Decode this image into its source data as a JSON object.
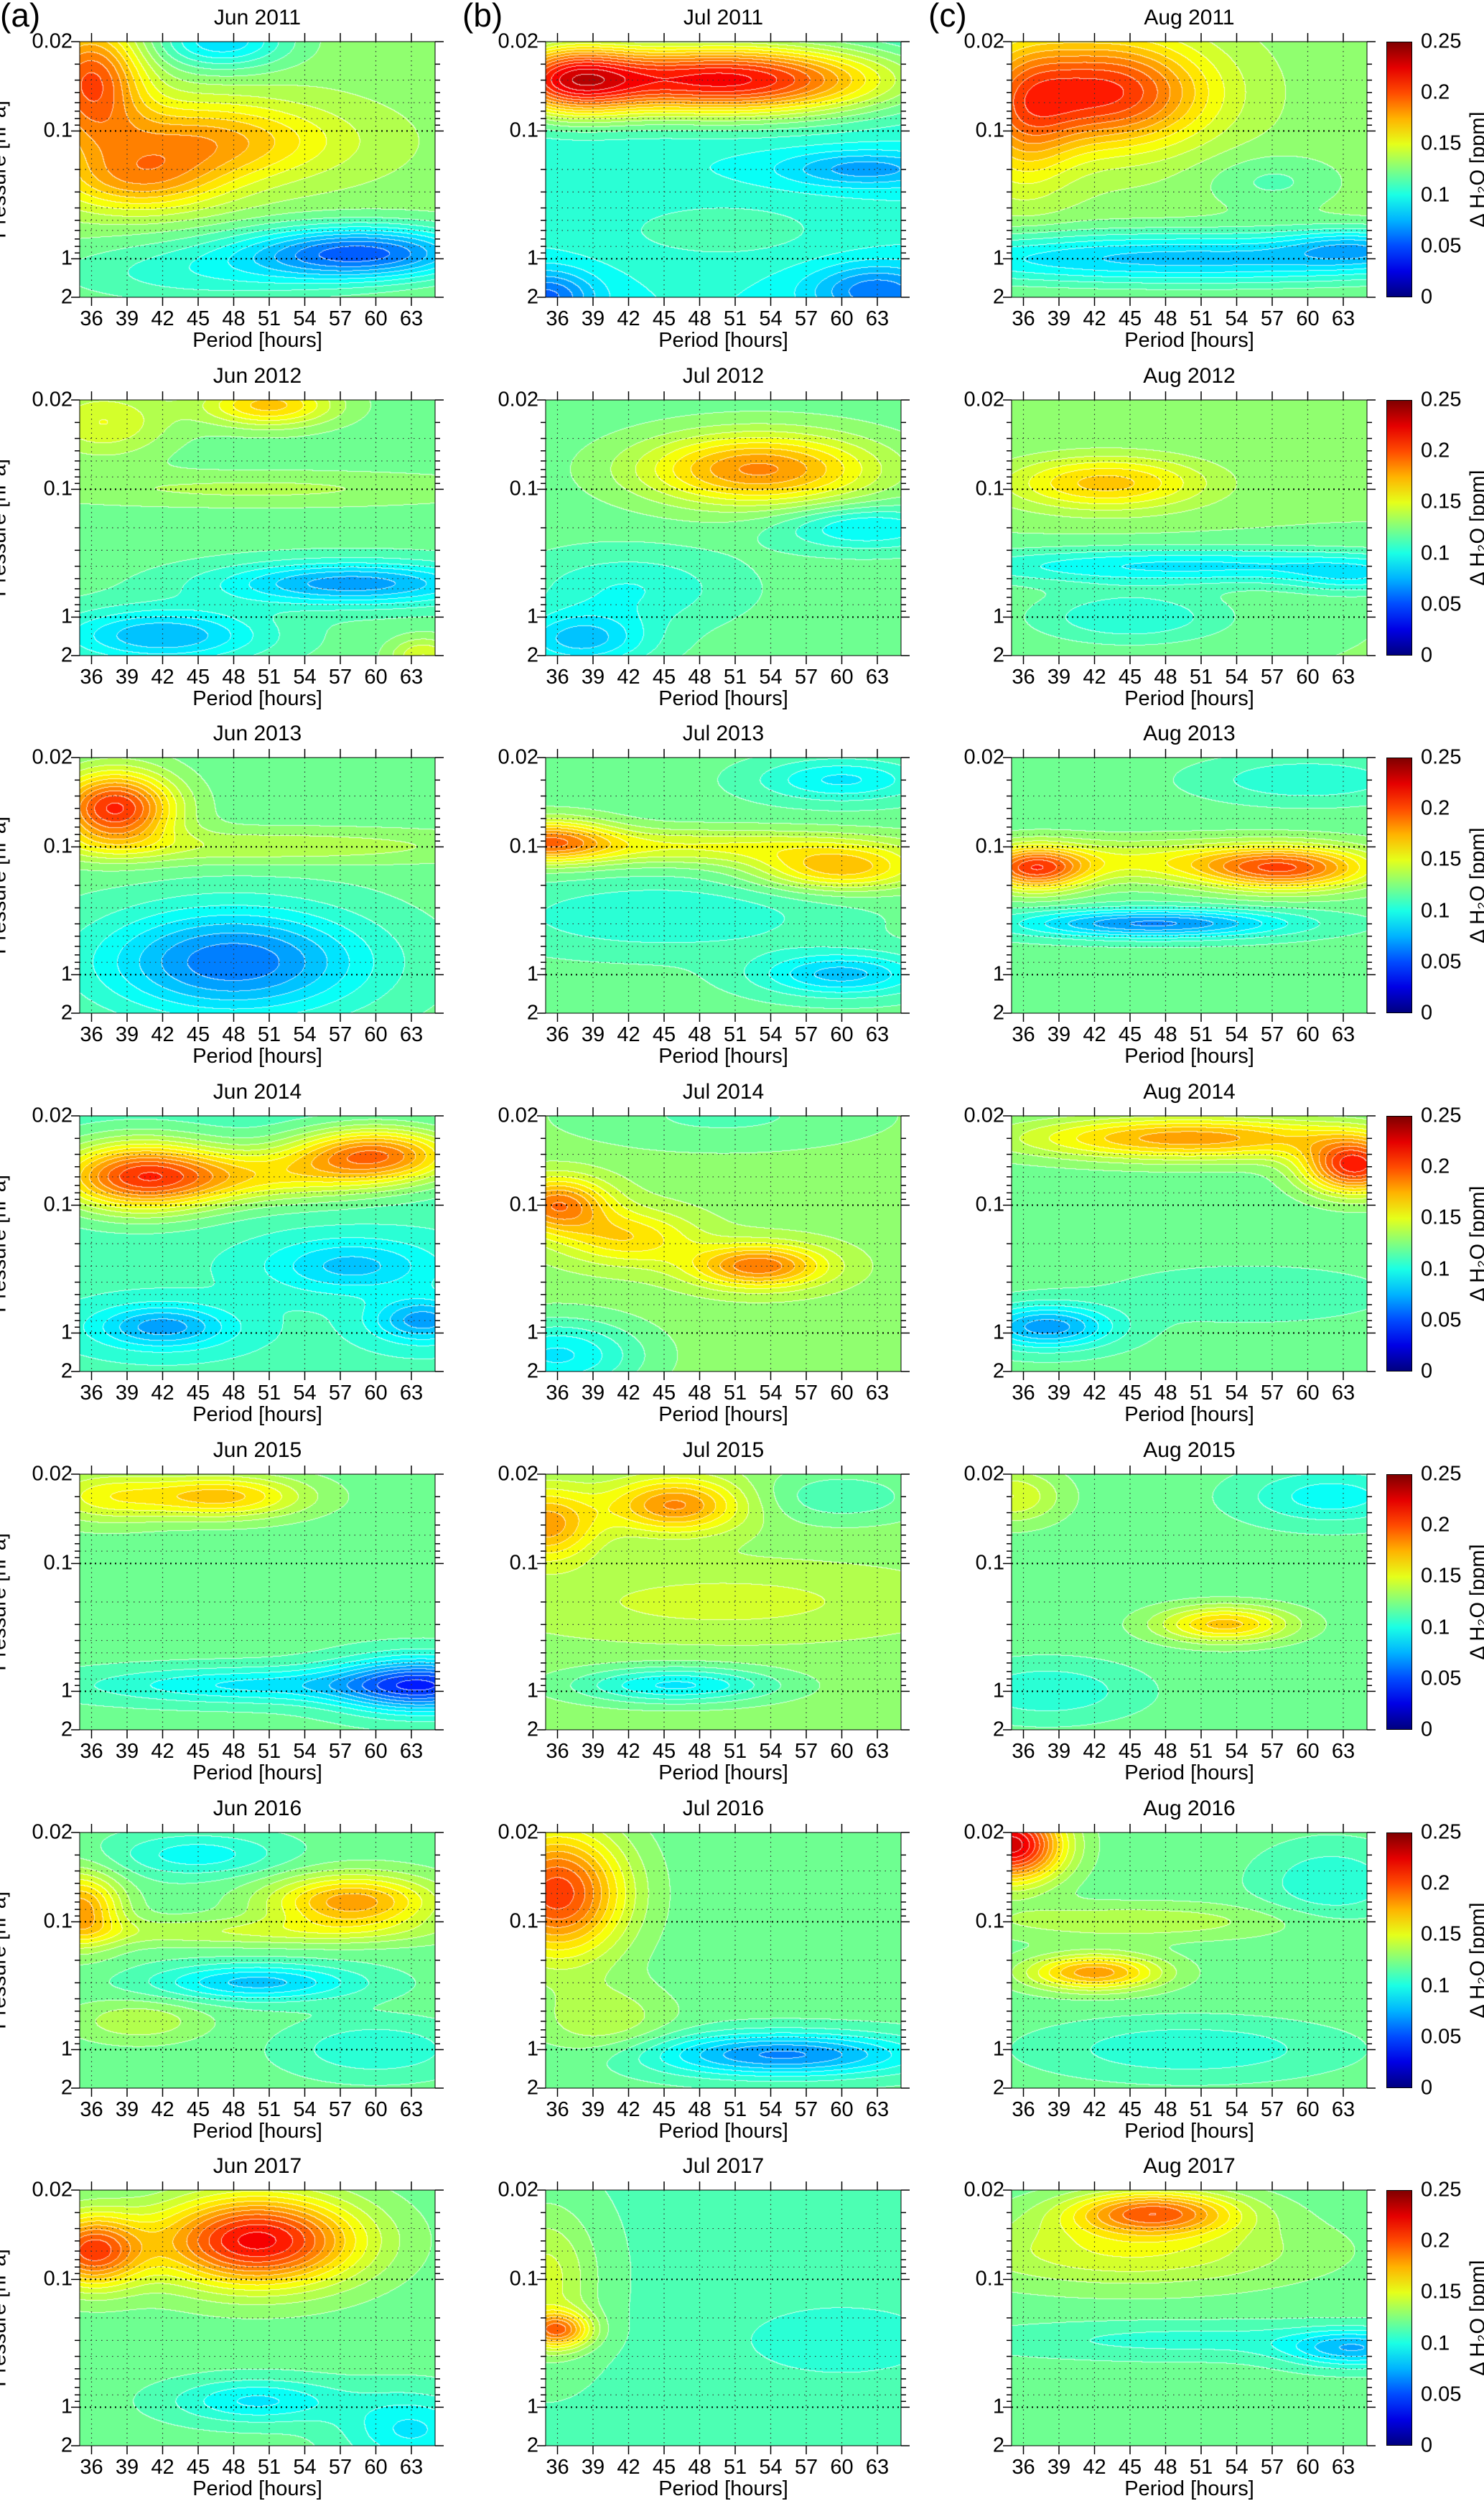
{
  "panel_labels": [
    "(a)",
    "(b)",
    "(c)"
  ],
  "axes": {
    "xlabel": "Period [hours]",
    "ylabel": "Pressure [hPa]",
    "xlim": [
      35,
      65
    ],
    "ylim": [
      0.02,
      2
    ],
    "xticks": [
      "36",
      "39",
      "42",
      "45",
      "48",
      "51",
      "54",
      "57",
      "60",
      "63"
    ],
    "yticks": [
      "0.02",
      "0.1",
      "1",
      "2"
    ],
    "yscale": "log"
  },
  "colorbar": {
    "label": "Δ H₂O [ppm]",
    "range": [
      0,
      0.25
    ],
    "ticks": [
      "0.25",
      "0.2",
      "0.15",
      "0.1",
      "0.05",
      "0"
    ],
    "colormap": "jet",
    "contour_interval": 0.00833
  },
  "chart_data": [
    {
      "type": "heatmap",
      "title": "Jun 2011",
      "base": 0.13,
      "features": [
        {
          "p": 36,
          "hPa": 0.04,
          "amp": 0.07,
          "sp": 3,
          "sl": 0.3
        },
        {
          "p": 45,
          "hPa": 0.12,
          "amp": 0.05,
          "sp": 8,
          "sl": 0.22
        },
        {
          "p": 40,
          "hPa": 0.25,
          "amp": 0.04,
          "sp": 5,
          "sl": 0.18
        },
        {
          "p": 59,
          "hPa": 0.9,
          "amp": -0.07,
          "sp": 7,
          "sl": 0.15
        },
        {
          "p": 47,
          "hPa": 0.02,
          "amp": -0.045,
          "sp": 4,
          "sl": 0.15
        },
        {
          "p": 45,
          "hPa": 1.3,
          "amp": -0.025,
          "sp": 10,
          "sl": 0.2
        }
      ]
    },
    {
      "type": "heatmap",
      "title": "Jul 2011",
      "base": 0.1,
      "features": [
        {
          "p": 50,
          "hPa": 0.04,
          "amp": 0.12,
          "sp": 10,
          "sl": 0.2
        },
        {
          "p": 37,
          "hPa": 0.04,
          "amp": 0.08,
          "sp": 4,
          "sl": 0.2
        },
        {
          "p": 35,
          "hPa": 2,
          "amp": -0.045,
          "sp": 3,
          "sl": 0.15
        },
        {
          "p": 63,
          "hPa": 1.8,
          "amp": -0.04,
          "sp": 4,
          "sl": 0.15
        },
        {
          "p": 62,
          "hPa": 0.2,
          "amp": -0.03,
          "sp": 5,
          "sl": 0.1
        },
        {
          "p": 50,
          "hPa": 0.6,
          "amp": 0.012,
          "sp": 8,
          "sl": 0.2
        }
      ]
    },
    {
      "type": "heatmap",
      "title": "Aug 2011",
      "base": 0.13,
      "features": [
        {
          "p": 43,
          "hPa": 0.05,
          "amp": 0.08,
          "sp": 6,
          "sl": 0.3
        },
        {
          "p": 36,
          "hPa": 0.08,
          "amp": 0.04,
          "sp": 3,
          "sl": 0.4
        },
        {
          "p": 50,
          "hPa": 1.0,
          "amp": -0.05,
          "sp": 20,
          "sl": 0.15
        },
        {
          "p": 64,
          "hPa": 0.8,
          "amp": -0.025,
          "sp": 4,
          "sl": 0.1
        },
        {
          "p": 57,
          "hPa": 0.25,
          "amp": -0.015,
          "sp": 4,
          "sl": 0.15
        }
      ]
    },
    {
      "type": "heatmap",
      "title": "Jun 2012",
      "base": 0.12,
      "features": [
        {
          "p": 51,
          "hPa": 0.022,
          "amp": 0.05,
          "sp": 4,
          "sl": 0.12
        },
        {
          "p": 37,
          "hPa": 0.03,
          "amp": 0.03,
          "sp": 4,
          "sl": 0.2
        },
        {
          "p": 50,
          "hPa": 0.1,
          "amp": 0.015,
          "sp": 15,
          "sl": 0.1
        },
        {
          "p": 58,
          "hPa": 0.55,
          "amp": -0.05,
          "sp": 8,
          "sl": 0.12
        },
        {
          "p": 42,
          "hPa": 1.4,
          "amp": -0.045,
          "sp": 6,
          "sl": 0.15
        },
        {
          "p": 64,
          "hPa": 2,
          "amp": 0.03,
          "sp": 2,
          "sl": 0.1
        }
      ]
    },
    {
      "type": "heatmap",
      "title": "Jul 2012",
      "base": 0.12,
      "features": [
        {
          "p": 53,
          "hPa": 0.07,
          "amp": 0.065,
          "sp": 7,
          "sl": 0.2
        },
        {
          "p": 62,
          "hPa": 0.2,
          "amp": -0.03,
          "sp": 5,
          "sl": 0.12
        },
        {
          "p": 38,
          "hPa": 1.5,
          "amp": -0.04,
          "sp": 4,
          "sl": 0.15
        },
        {
          "p": 42,
          "hPa": 0.6,
          "amp": -0.02,
          "sp": 6,
          "sl": 0.2
        }
      ]
    },
    {
      "type": "heatmap",
      "title": "Aug 2012",
      "base": 0.125,
      "features": [
        {
          "p": 43,
          "hPa": 0.09,
          "amp": 0.045,
          "sp": 6,
          "sl": 0.15
        },
        {
          "p": 50,
          "hPa": 0.4,
          "amp": -0.035,
          "sp": 15,
          "sl": 0.1
        },
        {
          "p": 64,
          "hPa": 0.5,
          "amp": -0.02,
          "sp": 4,
          "sl": 0.1
        },
        {
          "p": 45,
          "hPa": 1.0,
          "amp": -0.025,
          "sp": 6,
          "sl": 0.15
        }
      ]
    },
    {
      "type": "heatmap",
      "title": "Jun 2013",
      "base": 0.12,
      "features": [
        {
          "p": 38,
          "hPa": 0.05,
          "amp": 0.09,
          "sp": 3.5,
          "sl": 0.2
        },
        {
          "p": 50,
          "hPa": 0.1,
          "amp": 0.02,
          "sp": 15,
          "sl": 0.1
        },
        {
          "p": 48,
          "hPa": 0.8,
          "amp": -0.06,
          "sp": 8,
          "sl": 0.3
        }
      ]
    },
    {
      "type": "heatmap",
      "title": "Jul 2013",
      "base": 0.12,
      "features": [
        {
          "p": 35,
          "hPa": 0.09,
          "amp": 0.06,
          "sp": 4,
          "sl": 0.12
        },
        {
          "p": 48,
          "hPa": 0.1,
          "amp": 0.03,
          "sp": 12,
          "sl": 0.1
        },
        {
          "p": 60,
          "hPa": 0.15,
          "amp": 0.05,
          "sp": 5,
          "sl": 0.12
        },
        {
          "p": 60,
          "hPa": 0.03,
          "amp": -0.03,
          "sp": 5,
          "sl": 0.12
        },
        {
          "p": 60,
          "hPa": 1.0,
          "amp": -0.04,
          "sp": 5,
          "sl": 0.12
        },
        {
          "p": 45,
          "hPa": 0.35,
          "amp": -0.02,
          "sp": 10,
          "sl": 0.2
        }
      ]
    },
    {
      "type": "heatmap",
      "title": "Aug 2013",
      "base": 0.12,
      "features": [
        {
          "p": 37,
          "hPa": 0.15,
          "amp": 0.07,
          "sp": 3,
          "sl": 0.12
        },
        {
          "p": 58,
          "hPa": 0.15,
          "amp": 0.065,
          "sp": 5,
          "sl": 0.12
        },
        {
          "p": 47,
          "hPa": 0.13,
          "amp": 0.03,
          "sp": 12,
          "sl": 0.12
        },
        {
          "p": 47,
          "hPa": 0.4,
          "amp": -0.055,
          "sp": 8,
          "sl": 0.08
        },
        {
          "p": 60,
          "hPa": 0.03,
          "amp": -0.02,
          "sp": 6,
          "sl": 0.12
        }
      ]
    },
    {
      "type": "heatmap",
      "title": "Jun 2014",
      "base": 0.11,
      "features": [
        {
          "p": 40,
          "hPa": 0.06,
          "amp": 0.08,
          "sp": 5,
          "sl": 0.2
        },
        {
          "p": 60,
          "hPa": 0.04,
          "amp": 0.075,
          "sp": 5,
          "sl": 0.15
        },
        {
          "p": 50,
          "hPa": 0.06,
          "amp": 0.04,
          "sp": 8,
          "sl": 0.15
        },
        {
          "p": 42,
          "hPa": 0.9,
          "amp": -0.04,
          "sp": 4,
          "sl": 0.12
        },
        {
          "p": 64,
          "hPa": 0.8,
          "amp": -0.04,
          "sp": 3,
          "sl": 0.12
        },
        {
          "p": 58,
          "hPa": 0.3,
          "amp": -0.03,
          "sp": 5,
          "sl": 0.15
        }
      ]
    },
    {
      "type": "heatmap",
      "title": "Jul 2014",
      "base": 0.13,
      "features": [
        {
          "p": 36,
          "hPa": 0.1,
          "amp": 0.06,
          "sp": 3,
          "sl": 0.15
        },
        {
          "p": 42,
          "hPa": 0.18,
          "amp": 0.035,
          "sp": 4,
          "sl": 0.15
        },
        {
          "p": 53,
          "hPa": 0.3,
          "amp": 0.06,
          "sp": 4,
          "sl": 0.12
        },
        {
          "p": 50,
          "hPa": 0.02,
          "amp": -0.015,
          "sp": 10,
          "sl": 0.2
        },
        {
          "p": 36,
          "hPa": 1.5,
          "amp": -0.04,
          "sp": 5,
          "sl": 0.2
        }
      ]
    },
    {
      "type": "heatmap",
      "title": "Aug 2014",
      "base": 0.12,
      "features": [
        {
          "p": 50,
          "hPa": 0.03,
          "amp": 0.06,
          "sp": 10,
          "sl": 0.12
        },
        {
          "p": 64,
          "hPa": 0.05,
          "amp": 0.09,
          "sp": 3,
          "sl": 0.15
        },
        {
          "p": 38,
          "hPa": 0.9,
          "amp": -0.05,
          "sp": 4,
          "sl": 0.12
        },
        {
          "p": 55,
          "hPa": 0.5,
          "amp": -0.01,
          "sp": 8,
          "sl": 0.15
        }
      ]
    },
    {
      "type": "heatmap",
      "title": "Jun 2015",
      "base": 0.12,
      "features": [
        {
          "p": 47,
          "hPa": 0.03,
          "amp": 0.05,
          "sp": 5,
          "sl": 0.12
        },
        {
          "p": 37,
          "hPa": 0.03,
          "amp": 0.03,
          "sp": 4,
          "sl": 0.15
        },
        {
          "p": 64,
          "hPa": 0.9,
          "amp": -0.07,
          "sp": 5,
          "sl": 0.15
        },
        {
          "p": 50,
          "hPa": 0.9,
          "amp": -0.03,
          "sp": 10,
          "sl": 0.1
        }
      ]
    },
    {
      "type": "heatmap",
      "title": "Jul 2015",
      "base": 0.13,
      "features": [
        {
          "p": 46,
          "hPa": 0.035,
          "amp": 0.055,
          "sp": 4,
          "sl": 0.15
        },
        {
          "p": 35,
          "hPa": 0.05,
          "amp": 0.05,
          "sp": 3,
          "sl": 0.2
        },
        {
          "p": 50,
          "hPa": 0.2,
          "amp": 0.015,
          "sp": 12,
          "sl": 0.2
        },
        {
          "p": 46,
          "hPa": 0.9,
          "amp": -0.04,
          "sp": 6,
          "sl": 0.1
        },
        {
          "p": 60,
          "hPa": 0.03,
          "amp": -0.02,
          "sp": 5,
          "sl": 0.15
        }
      ]
    },
    {
      "type": "heatmap",
      "title": "Aug 2015",
      "base": 0.12,
      "features": [
        {
          "p": 53,
          "hPa": 0.3,
          "amp": 0.05,
          "sp": 4,
          "sl": 0.1
        },
        {
          "p": 62,
          "hPa": 0.03,
          "amp": -0.025,
          "sp": 5,
          "sl": 0.15
        },
        {
          "p": 35,
          "hPa": 0.03,
          "amp": 0.03,
          "sp": 3,
          "sl": 0.15
        },
        {
          "p": 38,
          "hPa": 1.0,
          "amp": -0.02,
          "sp": 5,
          "sl": 0.15
        }
      ]
    },
    {
      "type": "heatmap",
      "title": "Jun 2016",
      "base": 0.12,
      "features": [
        {
          "p": 35,
          "hPa": 0.08,
          "amp": 0.06,
          "sp": 2.5,
          "sl": 0.2
        },
        {
          "p": 58,
          "hPa": 0.07,
          "amp": 0.06,
          "sp": 5,
          "sl": 0.15
        },
        {
          "p": 45,
          "hPa": 0.03,
          "amp": -0.025,
          "sp": 5,
          "sl": 0.12
        },
        {
          "p": 50,
          "hPa": 0.3,
          "amp": -0.04,
          "sp": 6,
          "sl": 0.1
        },
        {
          "p": 40,
          "hPa": 0.6,
          "amp": 0.02,
          "sp": 4,
          "sl": 0.12
        },
        {
          "p": 60,
          "hPa": 1.0,
          "amp": -0.02,
          "sp": 5,
          "sl": 0.15
        },
        {
          "p": 48,
          "hPa": 0.12,
          "amp": 0.02,
          "sp": 12,
          "sl": 0.08
        }
      ]
    },
    {
      "type": "heatmap",
      "title": "Jul 2016",
      "base": 0.12,
      "features": [
        {
          "p": 36,
          "hPa": 0.06,
          "amp": 0.085,
          "sp": 4,
          "sl": 0.35
        },
        {
          "p": 55,
          "hPa": 1.1,
          "amp": -0.055,
          "sp": 8,
          "sl": 0.12
        },
        {
          "p": 40,
          "hPa": 0.6,
          "amp": 0.02,
          "sp": 4,
          "sl": 0.2
        }
      ]
    },
    {
      "type": "heatmap",
      "title": "Aug 2016",
      "base": 0.12,
      "features": [
        {
          "p": 35,
          "hPa": 0.025,
          "amp": 0.11,
          "sp": 3,
          "sl": 0.2
        },
        {
          "p": 42,
          "hPa": 0.25,
          "amp": 0.06,
          "sp": 4,
          "sl": 0.1
        },
        {
          "p": 45,
          "hPa": 0.1,
          "amp": 0.02,
          "sp": 10,
          "sl": 0.1
        },
        {
          "p": 62,
          "hPa": 0.05,
          "amp": -0.02,
          "sp": 4,
          "sl": 0.2
        },
        {
          "p": 50,
          "hPa": 1.0,
          "amp": -0.02,
          "sp": 8,
          "sl": 0.15
        }
      ]
    },
    {
      "type": "heatmap",
      "title": "Jun 2017",
      "base": 0.12,
      "features": [
        {
          "p": 50,
          "hPa": 0.05,
          "amp": 0.1,
          "sp": 6,
          "sl": 0.25
        },
        {
          "p": 36,
          "hPa": 0.06,
          "amp": 0.08,
          "sp": 3,
          "sl": 0.2
        },
        {
          "p": 50,
          "hPa": 0.9,
          "amp": -0.03,
          "sp": 5,
          "sl": 0.12
        },
        {
          "p": 63,
          "hPa": 1.5,
          "amp": -0.03,
          "sp": 4,
          "sl": 0.2
        }
      ]
    },
    {
      "type": "heatmap",
      "title": "Jul 2017",
      "base": 0.115,
      "features": [
        {
          "p": 36,
          "hPa": 0.25,
          "amp": 0.065,
          "sp": 2,
          "sl": 0.1
        },
        {
          "p": 35,
          "hPa": 0.1,
          "amp": 0.03,
          "sp": 3,
          "sl": 0.4
        },
        {
          "p": 60,
          "hPa": 0.3,
          "amp": -0.015,
          "sp": 6,
          "sl": 0.2
        }
      ]
    },
    {
      "type": "heatmap",
      "title": "Aug 2017",
      "base": 0.12,
      "features": [
        {
          "p": 47,
          "hPa": 0.03,
          "amp": 0.07,
          "sp": 5,
          "sl": 0.12
        },
        {
          "p": 45,
          "hPa": 0.06,
          "amp": 0.03,
          "sp": 10,
          "sl": 0.2
        },
        {
          "p": 64,
          "hPa": 0.35,
          "amp": -0.04,
          "sp": 4,
          "sl": 0.1
        },
        {
          "p": 50,
          "hPa": 0.3,
          "amp": -0.015,
          "sp": 12,
          "sl": 0.1
        }
      ]
    }
  ]
}
